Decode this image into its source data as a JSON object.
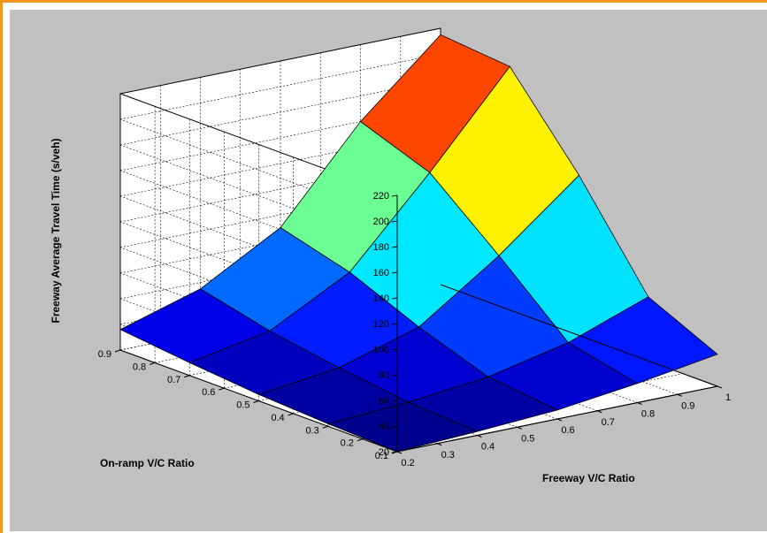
{
  "chart_data": {
    "type": "surface",
    "title": "",
    "xlabel": "Freeway V/C Ratio",
    "ylabel": "On-ramp V/C Ratio",
    "zlabel": "Freeway Average Travel Time (s/veh)",
    "xlim": [
      0.2,
      1.0
    ],
    "ylim": [
      0.1,
      0.9
    ],
    "zlim": [
      20,
      220
    ],
    "x_ticks": [
      "0.2",
      "0.3",
      "0.4",
      "0.5",
      "0.6",
      "0.7",
      "0.8",
      "0.9",
      "1"
    ],
    "y_ticks": [
      "0.1",
      "0.2",
      "0.3",
      "0.4",
      "0.5",
      "0.6",
      "0.7",
      "0.8",
      "0.9"
    ],
    "z_ticks": [
      "20",
      "40",
      "60",
      "80",
      "100",
      "120",
      "140",
      "160",
      "180",
      "200",
      "220"
    ],
    "grid": true,
    "colormap": "jet",
    "x": [
      0.2,
      0.4,
      0.6,
      0.8,
      1.0
    ],
    "y": [
      0.1,
      0.3,
      0.5,
      0.7,
      0.9
    ],
    "z": [
      [
        20,
        23,
        27,
        35,
        45
      ],
      [
        22,
        26,
        33,
        47,
        70
      ],
      [
        25,
        33,
        52,
        95,
        145
      ],
      [
        30,
        42,
        75,
        140,
        210
      ],
      [
        36,
        55,
        90,
        160,
        215
      ]
    ]
  }
}
